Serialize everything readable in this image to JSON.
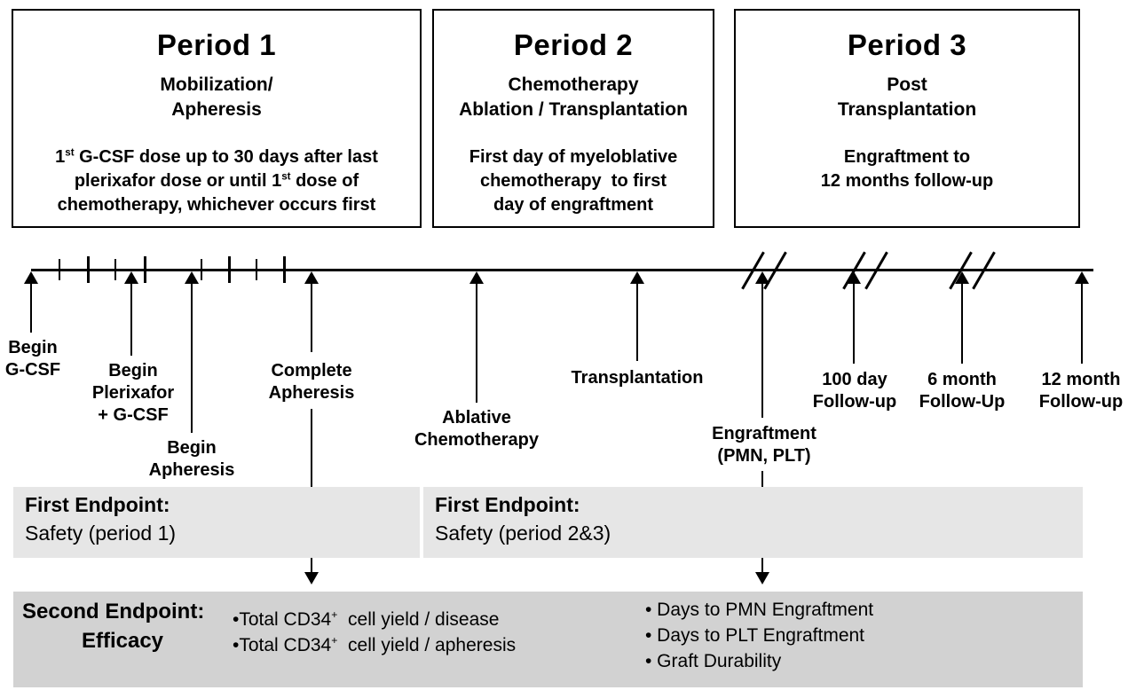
{
  "figure": {
    "background_color": "#ffffff",
    "line_color": "#000000",
    "first_endpoint_bar_color": "#e6e6e6",
    "second_endpoint_bar_color": "#d2d2d2"
  },
  "periods": [
    {
      "title": "Period 1",
      "subtitle": "Mobilization/\nApheresis",
      "body": "1^st^ G-CSF dose up to 30 days after last\nplerixafor dose or until 1^st^ dose of\nchemotherapy, whichever occurs first"
    },
    {
      "title": "Period 2",
      "subtitle": "Chemotherapy\nAblation / Transplantation",
      "body": "First day of myeloblative\nchemotherapy  to first\nday of engraftment"
    },
    {
      "title": "Period 3",
      "subtitle": "Post\nTransplantation",
      "body": "Engraftment to\n12 months follow-up"
    }
  ],
  "timeline": {
    "events": [
      {
        "label": "Begin\nG-CSF"
      },
      {
        "label": "Begin\nPlerixafor\n+ G-CSF"
      },
      {
        "label": "Begin\nApheresis"
      },
      {
        "label": "Complete\nApheresis"
      },
      {
        "label": "Ablative\nChemotherapy"
      },
      {
        "label": "Transplantation"
      },
      {
        "label": "Engraftment\n(PMN, PLT)"
      },
      {
        "label": "100 day\nFollow-up"
      },
      {
        "label": "6 month\nFollow-Up"
      },
      {
        "label": "12 month\nFollow-up"
      }
    ]
  },
  "endpoints": {
    "first_period1": {
      "title": "First Endpoint:",
      "body": "Safety (period 1)"
    },
    "first_period23": {
      "title": "First Endpoint:",
      "body": "Safety (period 2&3)"
    },
    "second": {
      "title": "Second Endpoint:",
      "subtitle": "Efficacy",
      "bullets_left": [
        "•Total CD34^+^  cell yield / disease",
        "•Total CD34^+^  cell yield / apheresis"
      ],
      "bullets_right": [
        "• Days to PMN Engraftment",
        "• Days to PLT Engraftment",
        "• Graft Durability"
      ]
    }
  }
}
